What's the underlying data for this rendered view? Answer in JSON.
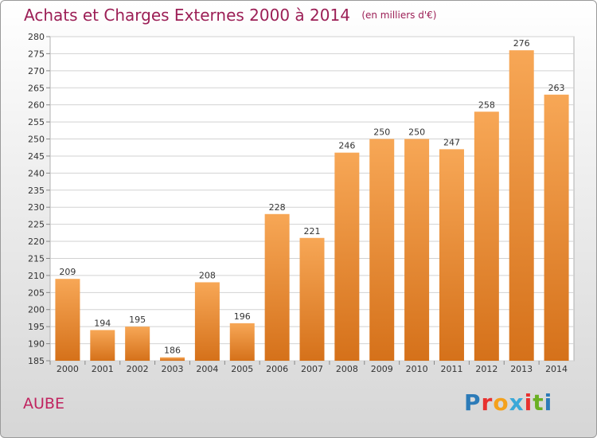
{
  "header": {
    "title": "Achats et Charges Externes 2000 à 2014",
    "subtitle": "(en milliers d'€)"
  },
  "location": "AUBE",
  "logo": {
    "text": "Proxiti",
    "letter_colors": [
      "#2c7bb8",
      "#e8312f",
      "#f4a11c",
      "#3aa8d8",
      "#e8312f",
      "#6ab023",
      "#2c7bb8"
    ]
  },
  "colors": {
    "bar_light": "#f7a756",
    "bar_dark": "#d5711a",
    "grid": "#d2d2d2",
    "title": "#9c1f56"
  },
  "chart_data": {
    "type": "bar",
    "categories": [
      "2000",
      "2001",
      "2002",
      "2003",
      "2004",
      "2005",
      "2006",
      "2007",
      "2008",
      "2009",
      "2010",
      "2011",
      "2012",
      "2013",
      "2014"
    ],
    "values": [
      209,
      194,
      195,
      186,
      208,
      196,
      228,
      221,
      246,
      250,
      250,
      247,
      258,
      276,
      263
    ],
    "ylim": [
      185,
      280
    ],
    "ytick_step": 5,
    "grid": true
  }
}
